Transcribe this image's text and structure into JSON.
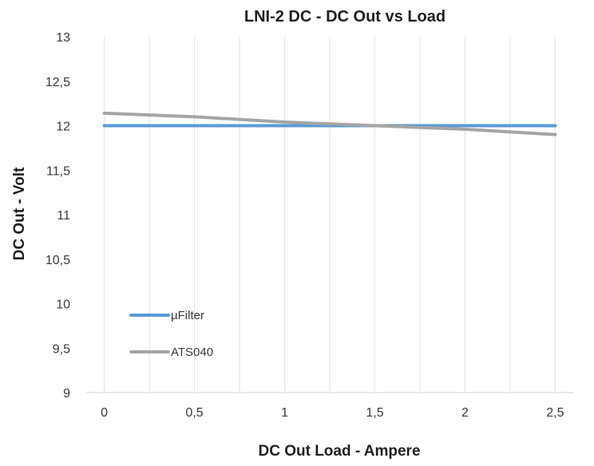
{
  "chart_data": {
    "type": "line",
    "title": "LNI-2 DC - DC Out vs Load",
    "xlabel": "DC Out Load - Ampere",
    "ylabel": "DC Out - Volt",
    "x": [
      0,
      0.5,
      1,
      1.5,
      2,
      2.5
    ],
    "x_tick_labels": [
      "0",
      "0,5",
      "1",
      "1,5",
      "2",
      "2,5"
    ],
    "y_tick_values": [
      9,
      9.5,
      10,
      10.5,
      11,
      11.5,
      12,
      12.5,
      13
    ],
    "y_tick_labels": [
      "9",
      "9,5",
      "10",
      "10,5",
      "11",
      "11,5",
      "12",
      "12,5",
      "13"
    ],
    "xlim": [
      -0.1,
      2.6
    ],
    "ylim": [
      9,
      13
    ],
    "grid": "vertical",
    "legend_position": "bottom-left",
    "series": [
      {
        "name": "µFilter",
        "color": "#5b9bd5",
        "x": [
          0,
          0.5,
          1,
          1.5,
          2,
          2.5
        ],
        "values": [
          12.0,
          12.0,
          12.0,
          12.0,
          12.0,
          12.0
        ]
      },
      {
        "name": "ATS040",
        "color": "#a5a5a5",
        "x": [
          0,
          0.5,
          1,
          1.5,
          2,
          2.5
        ],
        "values": [
          12.14,
          12.1,
          12.04,
          12.0,
          11.96,
          11.9
        ]
      }
    ]
  }
}
